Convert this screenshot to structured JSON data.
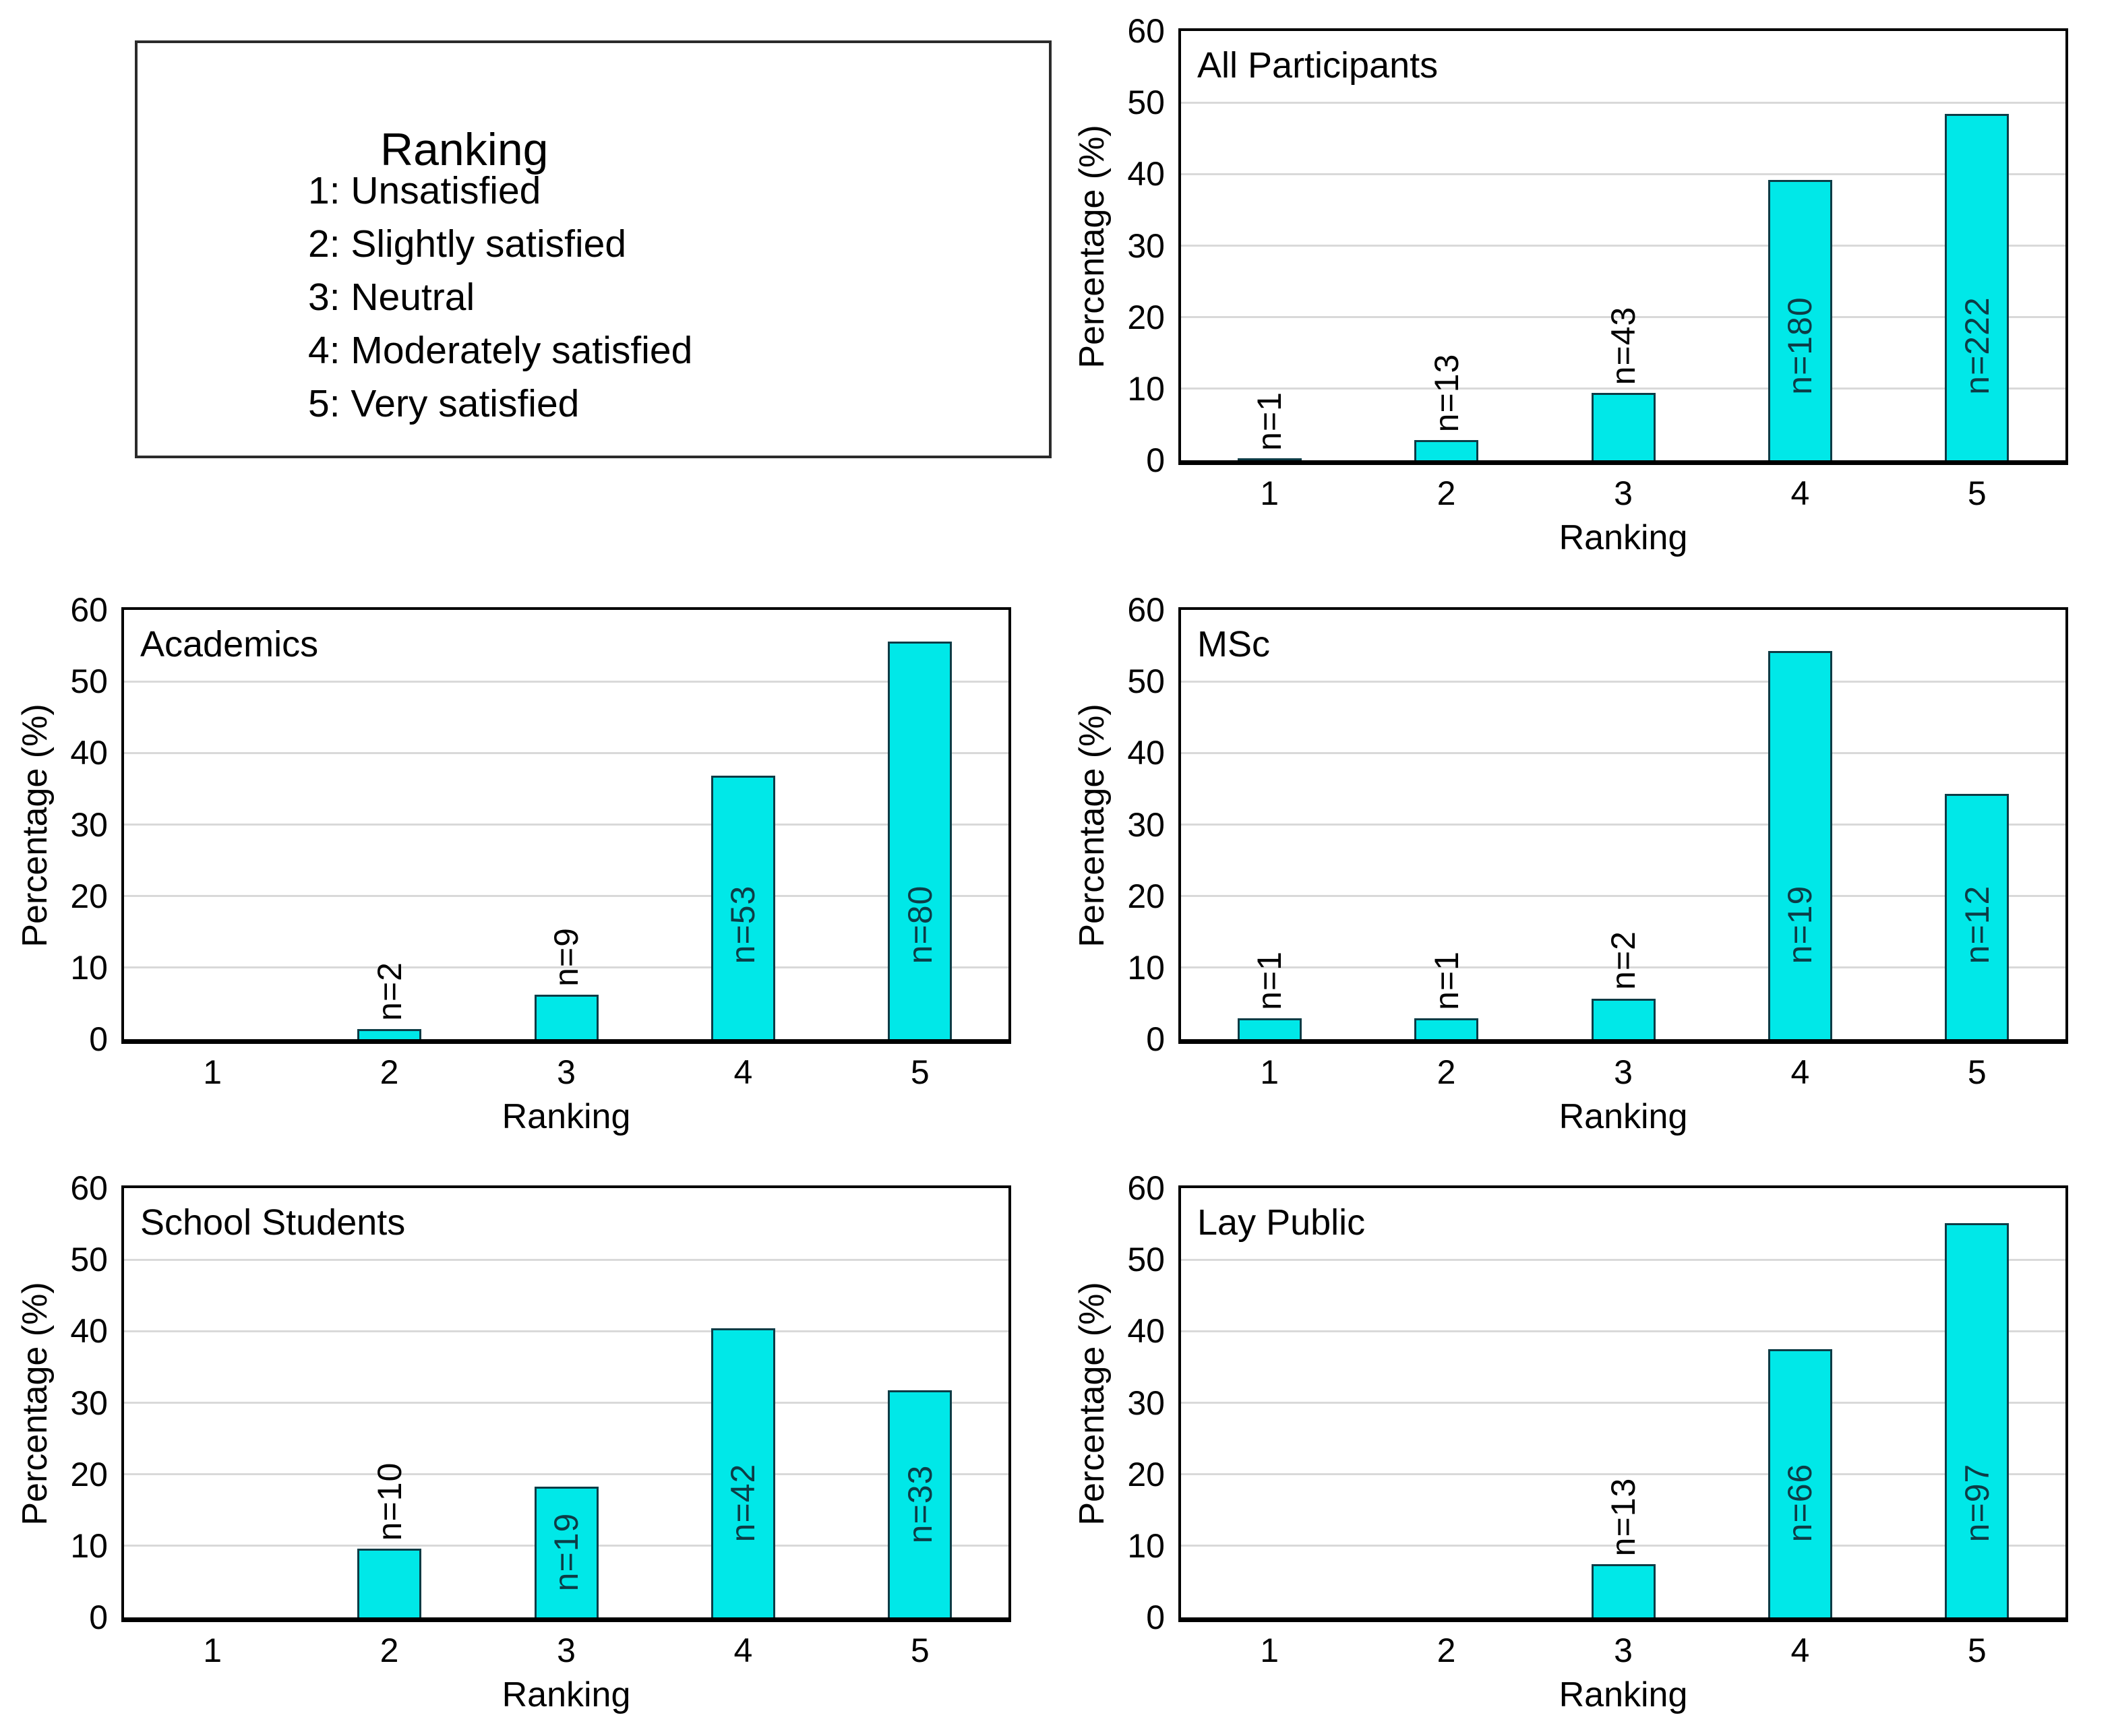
{
  "colors": {
    "background": "#ffffff",
    "bar_fill": "#00e8e8",
    "bar_border": "#0d3c46",
    "gridline": "#d9d9d9",
    "axis": "#000000",
    "text": "#000000"
  },
  "legend": {
    "title": "Ranking",
    "items": [
      "1: Unsatisfied",
      "2: Slightly satisfied",
      "3: Neutral",
      "4: Moderately satisfied",
      "5: Very satisfied"
    ]
  },
  "axes": {
    "x_title": "Ranking",
    "y_title": "Percentage (%)",
    "y_ticks": [
      0,
      10,
      20,
      30,
      40,
      50,
      60
    ],
    "y_max": 60,
    "x_categories": [
      "1",
      "2",
      "3",
      "4",
      "5"
    ]
  },
  "chart_data": [
    {
      "type": "bar",
      "title": "All Participants",
      "categories": [
        "1",
        "2",
        "3",
        "4",
        "5"
      ],
      "values": [
        0.2,
        2.8,
        9.4,
        39.2,
        48.4
      ],
      "counts": [
        1,
        13,
        43,
        180,
        222
      ],
      "count_labels": [
        "n=1",
        "n=13",
        "n=43",
        "n=180",
        "n=222"
      ],
      "xlabel": "Ranking",
      "ylabel": "Percentage (%)",
      "ylim": [
        0,
        60
      ],
      "grid": true
    },
    {
      "type": "bar",
      "title": "Academics",
      "categories": [
        "1",
        "2",
        "3",
        "4",
        "5"
      ],
      "values": [
        0,
        1.4,
        6.2,
        36.8,
        55.6
      ],
      "counts": [
        null,
        2,
        9,
        53,
        80
      ],
      "count_labels": [
        null,
        "n=2",
        "n=9",
        "n=53",
        "n=80"
      ],
      "xlabel": "Ranking",
      "ylabel": "Percentage (%)",
      "ylim": [
        0,
        60
      ],
      "grid": true
    },
    {
      "type": "bar",
      "title": "MSc",
      "categories": [
        "1",
        "2",
        "3",
        "4",
        "5"
      ],
      "values": [
        2.9,
        2.9,
        5.7,
        54.3,
        34.3
      ],
      "counts": [
        1,
        1,
        2,
        19,
        12
      ],
      "count_labels": [
        "n=1",
        "n=1",
        "n=2",
        "n=19",
        "n=12"
      ],
      "xlabel": "Ranking",
      "ylabel": "Percentage (%)",
      "ylim": [
        0,
        60
      ],
      "grid": true
    },
    {
      "type": "bar",
      "title": "School Students",
      "categories": [
        "1",
        "2",
        "3",
        "4",
        "5"
      ],
      "values": [
        0,
        9.6,
        18.3,
        40.4,
        31.7
      ],
      "counts": [
        null,
        10,
        19,
        42,
        33
      ],
      "count_labels": [
        null,
        "n=10",
        "n=19",
        "n=42",
        "n=33"
      ],
      "xlabel": "Ranking",
      "ylabel": "Percentage (%)",
      "ylim": [
        0,
        60
      ],
      "grid": true
    },
    {
      "type": "bar",
      "title": "Lay Public",
      "categories": [
        "1",
        "2",
        "3",
        "4",
        "5"
      ],
      "values": [
        0,
        0,
        7.4,
        37.5,
        55.1
      ],
      "counts": [
        null,
        null,
        13,
        66,
        97
      ],
      "count_labels": [
        null,
        null,
        "n=13",
        "n=66",
        "n=97"
      ],
      "xlabel": "Ranking",
      "ylabel": "Percentage (%)",
      "ylim": [
        0,
        60
      ],
      "grid": true
    }
  ]
}
